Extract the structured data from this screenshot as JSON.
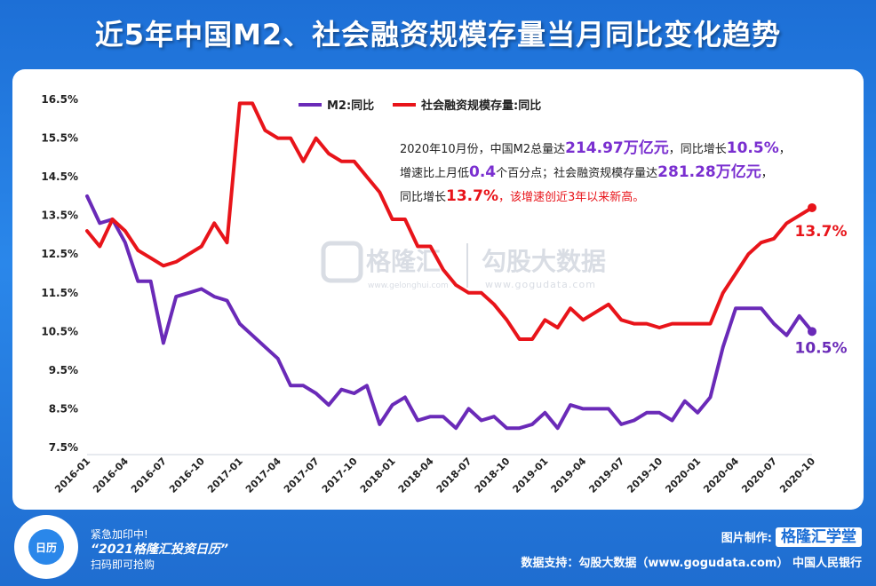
{
  "title": "近5年中国M2、社会融资规模存量当月同比变化趋势",
  "annotation": {
    "line1": [
      {
        "t": "2020年10月份，中国M2总量达",
        "c": "#222222",
        "b": false
      },
      {
        "t": "214.97万亿元",
        "c": "#7a2fd0",
        "b": true
      },
      {
        "t": "，同比增长",
        "c": "#222222",
        "b": false
      },
      {
        "t": "10.5%",
        "c": "#7a2fd0",
        "b": true
      },
      {
        "t": "，",
        "c": "#222222",
        "b": false
      }
    ],
    "line2": [
      {
        "t": "增速比上月低",
        "c": "#222222",
        "b": false
      },
      {
        "t": "0.4",
        "c": "#7a2fd0",
        "b": true
      },
      {
        "t": "个百分点；社会融资规模存量达",
        "c": "#222222",
        "b": false
      },
      {
        "t": "281.28万亿元",
        "c": "#7a2fd0",
        "b": true
      },
      {
        "t": "，",
        "c": "#222222",
        "b": false
      }
    ],
    "line3": [
      {
        "t": "同比增长",
        "c": "#222222",
        "b": false
      },
      {
        "t": "13.7%",
        "c": "#e8141a",
        "b": true
      },
      {
        "t": "，该增速创近3年以来新高。",
        "c": "#e8141a",
        "b": false
      }
    ]
  },
  "watermark": {
    "brand": "格隆汇",
    "sub": "www.gelonghui.com",
    "partner": "勾股大数据",
    "partner_sub": "www.gogudata.com"
  },
  "footer": {
    "promo_line1": "紧急加印中!",
    "promo_line2": "“2021格隆汇投资日历”",
    "promo_line3": "扫码即可抢购",
    "qr_text": "日历",
    "maker_label": "图片制作:",
    "maker_brand": "格隆汇学堂",
    "source": "数据支持：勾股大数据（www.gogudata.com） 中国人民银行"
  },
  "colors": {
    "m2": "#6a2ab8",
    "tsf": "#e8141a"
  },
  "chart_data": {
    "type": "line",
    "x": [
      "2016-01",
      "2016-02",
      "2016-03",
      "2016-04",
      "2016-05",
      "2016-06",
      "2016-07",
      "2016-08",
      "2016-09",
      "2016-10",
      "2016-11",
      "2016-12",
      "2017-01",
      "2017-02",
      "2017-03",
      "2017-04",
      "2017-05",
      "2017-06",
      "2017-07",
      "2017-08",
      "2017-09",
      "2017-10",
      "2017-11",
      "2017-12",
      "2018-01",
      "2018-02",
      "2018-03",
      "2018-04",
      "2018-05",
      "2018-06",
      "2018-07",
      "2018-08",
      "2018-09",
      "2018-10",
      "2018-11",
      "2018-12",
      "2019-01",
      "2019-02",
      "2019-03",
      "2019-04",
      "2019-05",
      "2019-06",
      "2019-07",
      "2019-08",
      "2019-09",
      "2019-10",
      "2019-11",
      "2019-12",
      "2020-01",
      "2020-02",
      "2020-03",
      "2020-04",
      "2020-05",
      "2020-06",
      "2020-07",
      "2020-08",
      "2020-09",
      "2020-10"
    ],
    "x_ticks": [
      "2016-01",
      "2016-04",
      "2016-07",
      "2016-10",
      "2017-01",
      "2017-04",
      "2017-07",
      "2017-10",
      "2018-01",
      "2018-04",
      "2018-07",
      "2018-10",
      "2019-01",
      "2019-04",
      "2019-07",
      "2019-10",
      "2020-01",
      "2020-04",
      "2020-07",
      "2020-10"
    ],
    "y_ticks": [
      "7.5%",
      "8.5%",
      "9.5%",
      "10.5%",
      "11.5%",
      "12.5%",
      "13.5%",
      "14.5%",
      "15.5%",
      "16.5%"
    ],
    "ylim": [
      7.5,
      16.5
    ],
    "series": [
      {
        "name": "M2:同比",
        "values": [
          14.0,
          13.3,
          13.4,
          12.8,
          11.8,
          11.8,
          10.2,
          11.4,
          11.5,
          11.6,
          11.4,
          11.3,
          10.7,
          10.4,
          10.1,
          9.8,
          9.1,
          9.1,
          8.9,
          8.6,
          9.0,
          8.9,
          9.1,
          8.1,
          8.6,
          8.8,
          8.2,
          8.3,
          8.3,
          8.0,
          8.5,
          8.2,
          8.3,
          8.0,
          8.0,
          8.1,
          8.4,
          8.0,
          8.6,
          8.5,
          8.5,
          8.5,
          8.1,
          8.2,
          8.4,
          8.4,
          8.2,
          8.7,
          8.4,
          8.8,
          10.1,
          11.1,
          11.1,
          11.1,
          10.7,
          10.4,
          10.9,
          10.5
        ],
        "end_label": "10.5%"
      },
      {
        "name": "社会融资规模存量:同比",
        "values": [
          13.1,
          12.7,
          13.4,
          13.1,
          12.6,
          12.4,
          12.2,
          12.3,
          12.5,
          12.7,
          13.3,
          12.8,
          16.4,
          16.4,
          15.7,
          15.5,
          15.5,
          14.9,
          15.5,
          15.1,
          14.9,
          14.9,
          14.5,
          14.1,
          13.4,
          13.4,
          12.7,
          12.7,
          12.1,
          11.7,
          11.5,
          11.5,
          11.2,
          10.8,
          10.3,
          10.3,
          10.8,
          10.6,
          11.1,
          10.8,
          11.0,
          11.2,
          10.8,
          10.7,
          10.7,
          10.6,
          10.7,
          10.7,
          10.7,
          10.7,
          11.5,
          12.0,
          12.5,
          12.8,
          12.9,
          13.3,
          13.5,
          13.7
        ],
        "end_label": "13.7%"
      }
    ],
    "legend_position": "top-center",
    "grid": false
  }
}
